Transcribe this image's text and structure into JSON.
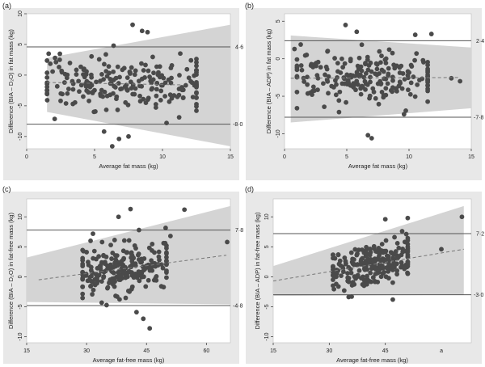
{
  "chart_data": [
    {
      "panel_label": "(a)",
      "type": "scatter",
      "xlabel": "Average fat mass (kg)",
      "ylabel": "Difference (BIA – D₂O) in fat mass (kg)",
      "xlim": [
        0,
        15
      ],
      "ylim": [
        -12,
        10
      ],
      "xticks": [
        0,
        5,
        10,
        15
      ],
      "yticks": [
        -10,
        -5,
        0,
        5,
        10
      ],
      "upper_loa": 4.6,
      "upper_loa_label": "4·6",
      "lower_loa": -8.0,
      "lower_loa_label": "-8·0",
      "bias_line": {
        "x": [
          1.5,
          11.5
        ],
        "y": [
          -1.2,
          -1.6
        ]
      },
      "band_upper": {
        "x": [
          1.5,
          15
        ],
        "y": [
          2.8,
          8.2
        ]
      },
      "band_lower": {
        "x": [
          1.5,
          15
        ],
        "y": [
          -6.0,
          -11.6
        ]
      },
      "x_range": [
        1.5,
        12.5
      ],
      "y_center": -1.4,
      "y_spread": 2.6,
      "n": 220,
      "seed": 11,
      "extra_points": [
        [
          7.8,
          8.2
        ],
        [
          8.5,
          7.2
        ],
        [
          8.9,
          7.0
        ],
        [
          6.3,
          -11.6
        ],
        [
          6.8,
          -10.4
        ],
        [
          7.5,
          -10.0
        ],
        [
          5.7,
          -9.2
        ],
        [
          10.3,
          -7.8
        ],
        [
          12.1,
          2.4
        ],
        [
          2.5,
          -4.2
        ],
        [
          6.4,
          4.8
        ]
      ]
    },
    {
      "panel_label": "(b)",
      "type": "scatter",
      "xlabel": "Average fat mass (kg)",
      "ylabel": "Difference (BIA – ADP) in fat mass (kg)",
      "xlim": [
        0,
        15
      ],
      "ylim": [
        -12,
        6
      ],
      "xticks": [
        0,
        5,
        10,
        15
      ],
      "yticks": [
        -10,
        -5,
        0,
        5
      ],
      "upper_loa": 2.4,
      "upper_loa_label": "2·4",
      "lower_loa": -7.8,
      "lower_loa_label": "-7·8",
      "bias_line": {
        "x": [
          0.5,
          14
        ],
        "y": [
          -2.6,
          -2.5
        ]
      },
      "band_upper": {
        "x": [
          0.5,
          15
        ],
        "y": [
          3.1,
          1.5
        ]
      },
      "band_lower": {
        "x": [
          0.5,
          15
        ],
        "y": [
          -8.5,
          -6.6
        ]
      },
      "x_range": [
        1,
        11.5
      ],
      "y_center": -2.6,
      "y_spread": 2.2,
      "n": 210,
      "seed": 23,
      "extra_points": [
        [
          0.8,
          1.3
        ],
        [
          1.3,
          1.9
        ],
        [
          6.7,
          -10.2
        ],
        [
          7.0,
          -10.6
        ],
        [
          9.6,
          -7.4
        ],
        [
          11.8,
          3.3
        ],
        [
          10.6,
          0.7
        ],
        [
          13.4,
          -2.6
        ],
        [
          14.1,
          -3.0
        ],
        [
          4.9,
          4.5
        ],
        [
          5.8,
          3.6
        ]
      ]
    },
    {
      "panel_label": "(c)",
      "type": "scatter",
      "xlabel": "Average fat-free mass (kg)",
      "ylabel": "Difference (BIA – D₂O) in fat-free mass (kg)",
      "xlim": [
        15,
        66
      ],
      "ylim": [
        -11,
        13
      ],
      "xticks": [
        15,
        30,
        45,
        60
      ],
      "yticks": [
        -10,
        -5,
        0,
        5,
        10
      ],
      "upper_loa": 7.8,
      "upper_loa_label": "7·8",
      "lower_loa": -4.8,
      "lower_loa_label": "-4·8",
      "bias_line": {
        "x": [
          18,
          65
        ],
        "y": [
          -0.5,
          3.6
        ]
      },
      "band_upper": {
        "x": [
          15,
          66
        ],
        "y": [
          3.2,
          11.8
        ]
      },
      "band_lower": {
        "x": [
          15,
          66
        ],
        "y": [
          -4.2,
          -4.6
        ]
      },
      "x_range": [
        29,
        50
      ],
      "y_center": 1.6,
      "y_spread": 2.6,
      "n": 230,
      "seed": 37,
      "extra_points": [
        [
          41,
          11.3
        ],
        [
          54.5,
          11.2
        ],
        [
          38,
          10.0
        ],
        [
          44.2,
          -7.0
        ],
        [
          45.8,
          -8.6
        ],
        [
          42.5,
          -5.9
        ],
        [
          65.2,
          5.8
        ],
        [
          51,
          6.8
        ],
        [
          31,
          6.0
        ]
      ]
    },
    {
      "panel_label": "(d)",
      "type": "scatter",
      "xlabel": "Average fat-free mass (kg)",
      "ylabel": "Difference (BIA – ADP) in fat-free mass (kg)",
      "xlim": [
        15,
        68
      ],
      "ylim": [
        -11,
        13
      ],
      "xticks": [
        15,
        30,
        45
      ],
      "xtick_labels_extra": [
        {
          "value": 60,
          "label": "a"
        }
      ],
      "yticks": [
        -10,
        -5,
        0,
        5,
        10
      ],
      "upper_loa": 7.2,
      "upper_loa_label": "7·2",
      "lower_loa": -3.0,
      "lower_loa_label": "-3·0",
      "bias_line": {
        "x": [
          15,
          66
        ],
        "y": [
          -0.7,
          4.6
        ]
      },
      "band_upper": {
        "x": [
          15,
          66
        ],
        "y": [
          1.8,
          11.8
        ]
      },
      "band_lower": {
        "x": [
          15,
          66
        ],
        "y": [
          -3.2,
          -3.0
        ]
      },
      "x_range": [
        31,
        51
      ],
      "y_center": 2.0,
      "y_spread": 2.1,
      "n": 230,
      "seed": 53,
      "extra_points": [
        [
          65.5,
          10.0
        ],
        [
          51,
          9.8
        ],
        [
          45,
          9.6
        ],
        [
          60,
          4.6
        ],
        [
          36,
          -3.3
        ],
        [
          47,
          -3.8
        ],
        [
          49.5,
          7.6
        ]
      ]
    }
  ]
}
